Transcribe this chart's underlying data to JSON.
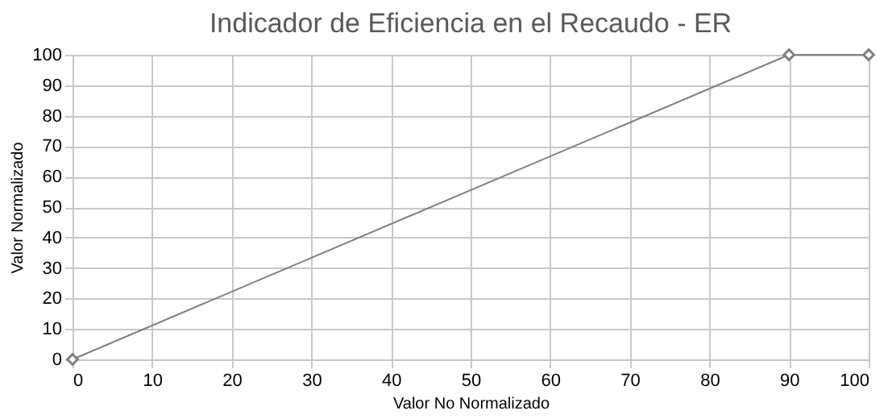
{
  "chart_data": {
    "type": "line",
    "title": "Indicador de Eficiencia en el Recaudo - ER",
    "xlabel": "Valor No Normalizado",
    "ylabel": "Valor Normalizado",
    "x": [
      0,
      90,
      100
    ],
    "series": [
      {
        "color": "#808080",
        "values": [
          0,
          100,
          100
        ]
      }
    ],
    "xlim": [
      0,
      100
    ],
    "xticks": [
      0,
      10,
      20,
      30,
      40,
      50,
      60,
      70,
      80,
      90,
      100
    ],
    "ylim": [
      0,
      100
    ],
    "yticks": [
      0,
      10,
      20,
      30,
      40,
      50,
      60,
      70,
      80,
      90,
      100
    ],
    "grid": true,
    "marker": "diamond",
    "line_style": "solid"
  }
}
